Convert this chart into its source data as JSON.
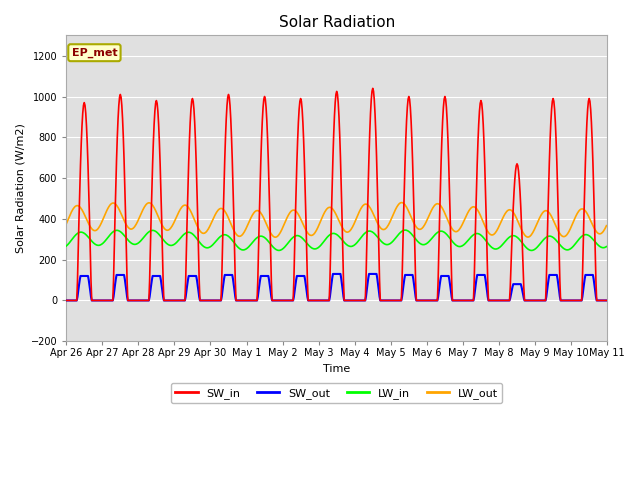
{
  "title": "Solar Radiation",
  "ylabel": "Solar Radiation (W/m2)",
  "xlabel": "Time",
  "ylim": [
    -200,
    1300
  ],
  "yticks": [
    -200,
    0,
    200,
    400,
    600,
    800,
    1000,
    1200
  ],
  "fig_bg_color": "#ffffff",
  "plot_bg_color": "#e0e0e0",
  "colors": {
    "SW_in": "#ff0000",
    "SW_out": "#0000ff",
    "LW_in": "#00ff00",
    "LW_out": "#ffa500"
  },
  "annotation": "EP_met",
  "n_days": 15,
  "x_labels": [
    "Apr 26",
    "Apr 27",
    "Apr 28",
    "Apr 29",
    "Apr 30",
    "May 1",
    "May 2",
    "May 3",
    "May 4",
    "May 5",
    "May 6",
    "May 7",
    "May 8",
    "May 9",
    "May 10",
    "May 11"
  ]
}
